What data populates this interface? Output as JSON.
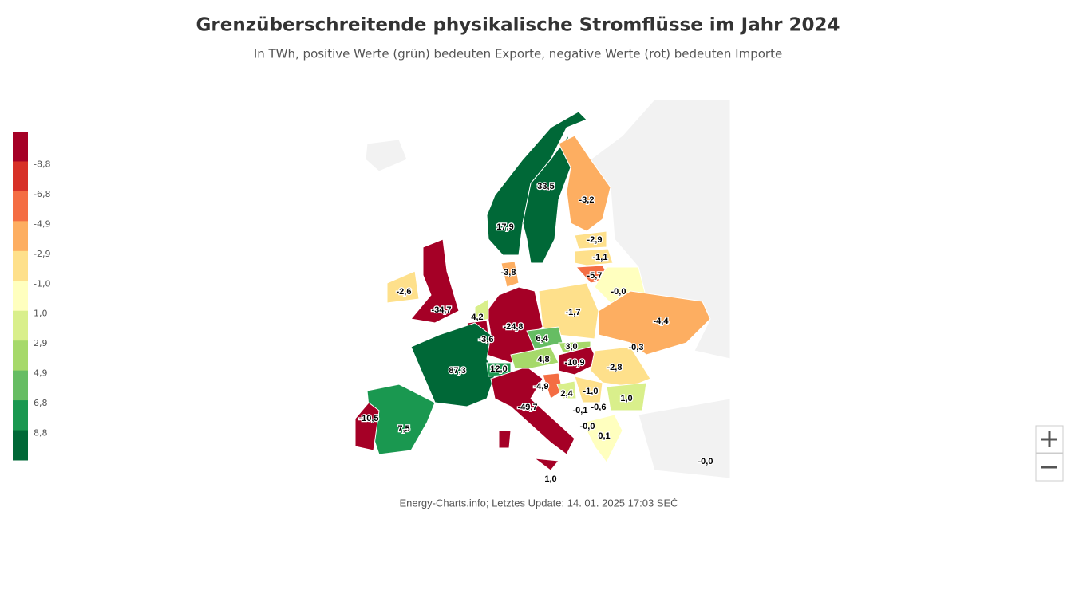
{
  "header": {
    "title": "Grenzüberschreitende physikalische Stromflüsse im Jahr 2024",
    "subtitle": "In TWh, positive Werte (grün) bedeuten Exporte, negative Werte (rot) bedeuten Importe"
  },
  "legend": {
    "labels": [
      "-8,8",
      "-6,8",
      "-4,9",
      "-2,9",
      "-1,0",
      "1,0",
      "2,9",
      "4,9",
      "6,8",
      "8,8"
    ]
  },
  "map": {
    "labels": [
      "33,5",
      "-3,2",
      "17,9",
      "-2,9",
      "-1,1",
      "-3,8",
      "-5,7",
      "-0,0",
      "-2,6",
      "-34,7",
      "-1,7",
      "-4,4",
      "4,2",
      "-24,8",
      "-3,6",
      "6,4",
      "3,0",
      "-0,3",
      "4,8",
      "-10,9",
      "-2,8",
      "87,3",
      "12,0",
      "-4,9",
      "2,4",
      "-1,0",
      "1,0",
      "-49,7",
      "-0,6",
      "-0,1",
      "-10,5",
      "7,5",
      "-0,0",
      "0,1",
      "-0,0",
      "1,0"
    ]
  },
  "footer": {
    "credit": "Energy-Charts.info; Letztes Update: 14. 01. 2025 17:03 SEČ"
  }
}
